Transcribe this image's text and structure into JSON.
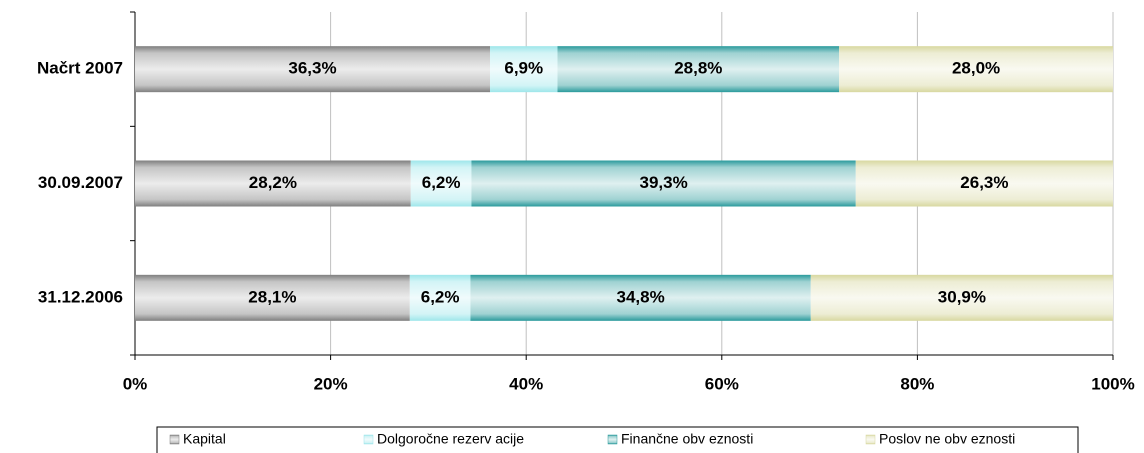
{
  "chart_data": {
    "type": "bar",
    "categories": [
      "Načrt 2007",
      "30.09.2007",
      "31.12.2006"
    ],
    "series": [
      {
        "name": "Kapital",
        "color": "#7f7f7f",
        "values": [
          36.3,
          28.2,
          28.1
        ],
        "value_labels": [
          "36,3%",
          "28,2%",
          "28,1%"
        ]
      },
      {
        "name": "Dolgoročne rezerv acije",
        "color": "#9ee6ea",
        "values": [
          6.9,
          6.2,
          6.2
        ],
        "value_labels": [
          "6,9%",
          "6,2%",
          "6,2%"
        ]
      },
      {
        "name": "Finančne obv eznosti",
        "color": "#2a9a9c",
        "values": [
          28.8,
          39.3,
          34.8
        ],
        "value_labels": [
          "28,8%",
          "39,3%",
          "34,8%"
        ]
      },
      {
        "name": "Poslov ne obv eznosti",
        "color": "#d8d8a0",
        "values": [
          28.0,
          26.3,
          30.9
        ],
        "value_labels": [
          "28,0%",
          "26,3%",
          "30,9%"
        ]
      }
    ],
    "xlim": [
      0,
      100
    ],
    "xticks": [
      {
        "value": 0,
        "label": "0%"
      },
      {
        "value": 20,
        "label": "20%"
      },
      {
        "value": 40,
        "label": "40%"
      },
      {
        "value": 60,
        "label": "60%"
      },
      {
        "value": 80,
        "label": "80%"
      },
      {
        "value": 100,
        "label": "100%"
      }
    ],
    "grid": true
  }
}
